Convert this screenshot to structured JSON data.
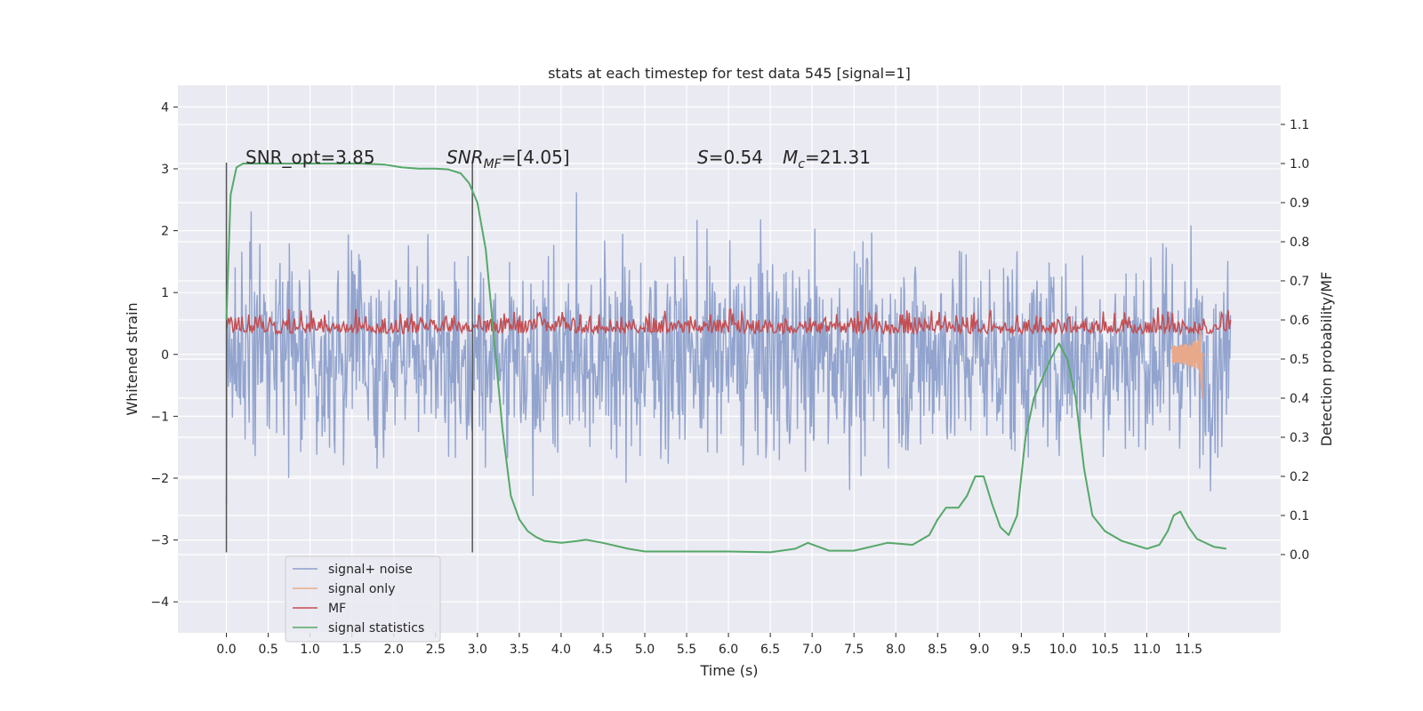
{
  "chart_data": {
    "type": "line",
    "title": "stats at each timestep for test data 545 [signal=1]",
    "xlabel": "Time (s)",
    "ylabel_left": "Whitened strain",
    "ylabel_right": "Detection probability/MF",
    "xlim": [
      -0.58,
      12.6
    ],
    "ylim_left": [
      -4.5,
      4.35
    ],
    "ylim_right": [
      -0.2,
      1.2
    ],
    "xticks": [
      "0.0",
      "0.5",
      "1.0",
      "1.5",
      "2.0",
      "2.5",
      "3.0",
      "3.5",
      "4.0",
      "4.5",
      "5.0",
      "5.5",
      "6.0",
      "6.5",
      "7.0",
      "7.5",
      "8.0",
      "8.5",
      "9.0",
      "9.5",
      "10.0",
      "10.5",
      "11.0",
      "11.5"
    ],
    "yticks_left": [
      "−4",
      "−3",
      "−2",
      "−1",
      "0",
      "1",
      "2",
      "3",
      "4"
    ],
    "yticks_right": [
      "0.0",
      "0.1",
      "0.2",
      "0.3",
      "0.4",
      "0.5",
      "0.6",
      "0.7",
      "0.8",
      "0.9",
      "1.0",
      "1.1"
    ],
    "grid": true,
    "legend_position": "lower-left",
    "annotations": {
      "snr_opt": "SNR_opt=3.85",
      "snr_mf_a": "SNR",
      "snr_mf_sub": "MF",
      "snr_mf_b": "=[4.05]",
      "s_a": "S",
      "s_b": "=0.54",
      "mc_a": "M",
      "mc_sub": "c",
      "mc_b": "=21.31"
    },
    "vlines": [
      0.0,
      2.94
    ],
    "series": [
      {
        "name": "signal+ noise",
        "color": "#8da0cb",
        "axis": "left",
        "x_range": [
          0.0,
          12.0
        ],
        "envelope": "noise band approx ±2 to ±3.4 around 0"
      },
      {
        "name": "signal only",
        "color": "#e8a98a",
        "axis": "left",
        "x_range": [
          11.3,
          11.7
        ],
        "note": "chirp near merger at ~11.65 s, amplitude up to ~0.7"
      },
      {
        "name": "MF",
        "color": "#c44e52",
        "axis": "right",
        "x_range": [
          0.0,
          12.0
        ],
        "note": "fluctuates between ~0.51 and ~0.68"
      },
      {
        "name": "signal statistics",
        "color": "#55a868",
        "axis": "right",
        "x": [
          0.0,
          0.05,
          0.12,
          0.2,
          0.4,
          0.8,
          1.2,
          1.6,
          1.9,
          2.1,
          2.3,
          2.5,
          2.65,
          2.8,
          2.9,
          3.0,
          3.1,
          3.2,
          3.3,
          3.4,
          3.5,
          3.6,
          3.7,
          3.8,
          4.0,
          4.2,
          4.3,
          4.5,
          4.8,
          5.0,
          5.5,
          6.0,
          6.5,
          6.8,
          6.95,
          7.05,
          7.2,
          7.5,
          7.9,
          8.2,
          8.4,
          8.5,
          8.6,
          8.75,
          8.85,
          8.95,
          9.05,
          9.15,
          9.25,
          9.35,
          9.45,
          9.55,
          9.65,
          9.75,
          9.85,
          9.95,
          10.05,
          10.15,
          10.25,
          10.35,
          10.5,
          10.7,
          11.0,
          11.15,
          11.25,
          11.32,
          11.4,
          11.5,
          11.6,
          11.8,
          11.95
        ],
        "y": [
          0.6,
          0.92,
          0.99,
          1.0,
          1.0,
          1.0,
          1.0,
          1.0,
          0.997,
          0.99,
          0.987,
          0.987,
          0.985,
          0.975,
          0.95,
          0.9,
          0.78,
          0.55,
          0.32,
          0.15,
          0.09,
          0.06,
          0.045,
          0.035,
          0.03,
          0.035,
          0.038,
          0.03,
          0.015,
          0.008,
          0.008,
          0.008,
          0.006,
          0.015,
          0.03,
          0.022,
          0.01,
          0.01,
          0.03,
          0.025,
          0.05,
          0.09,
          0.12,
          0.12,
          0.15,
          0.2,
          0.2,
          0.13,
          0.07,
          0.05,
          0.1,
          0.3,
          0.4,
          0.45,
          0.5,
          0.54,
          0.5,
          0.4,
          0.22,
          0.1,
          0.06,
          0.035,
          0.015,
          0.025,
          0.06,
          0.1,
          0.11,
          0.07,
          0.04,
          0.02,
          0.015
        ]
      }
    ]
  }
}
